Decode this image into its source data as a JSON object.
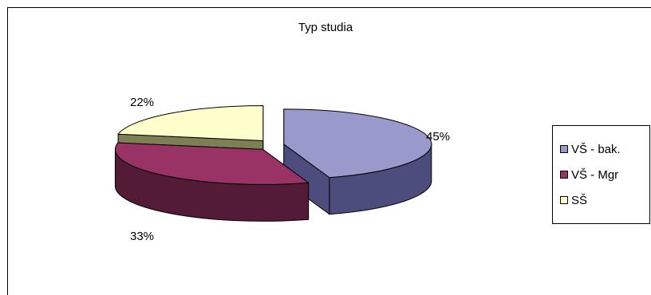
{
  "chart_data": {
    "type": "pie",
    "title": "Typ studia",
    "categories": [
      "VŠ - bak.",
      "VŠ - Mgr",
      "SŠ"
    ],
    "values": [
      45,
      33,
      22
    ],
    "value_labels": [
      "45%",
      "33%",
      "22%"
    ],
    "unit": "%",
    "legend_position": "right",
    "three_d": true,
    "colors": {
      "VŠ - bak.": {
        "top": "#9999cc",
        "side": "#4d4d7d"
      },
      "VŠ - Mgr": {
        "top": "#993366",
        "side": "#541b36"
      },
      "SŠ": {
        "top": "#ffffcc",
        "side": "#7f7f55"
      }
    }
  }
}
